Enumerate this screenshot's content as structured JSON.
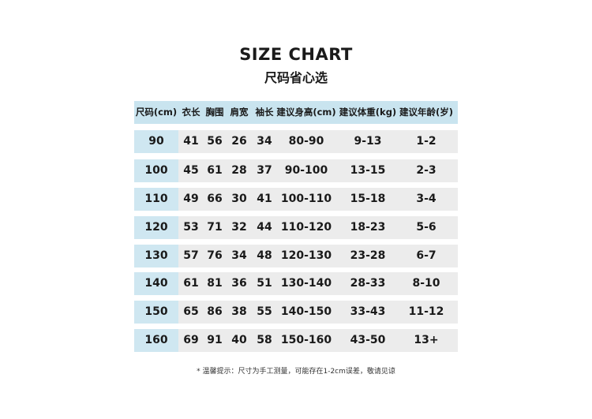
{
  "title": "SIZE CHART",
  "subtitle": "尺码省心选",
  "table": {
    "headers": [
      "尺码(cm)",
      "衣长",
      "胸围",
      "肩宽",
      "袖长",
      "建议身高(cm)",
      "建议体重(kg)",
      "建议年龄(岁)"
    ],
    "rows": [
      [
        "90",
        "41",
        "56",
        "26",
        "34",
        "80-90",
        "9-13",
        "1-2"
      ],
      [
        "100",
        "45",
        "61",
        "28",
        "37",
        "90-100",
        "13-15",
        "2-3"
      ],
      [
        "110",
        "49",
        "66",
        "30",
        "41",
        "100-110",
        "15-18",
        "3-4"
      ],
      [
        "120",
        "53",
        "71",
        "32",
        "44",
        "110-120",
        "18-23",
        "5-6"
      ],
      [
        "130",
        "57",
        "76",
        "34",
        "48",
        "120-130",
        "23-28",
        "6-7"
      ],
      [
        "140",
        "61",
        "81",
        "36",
        "51",
        "130-140",
        "28-33",
        "8-10"
      ],
      [
        "150",
        "65",
        "86",
        "38",
        "55",
        "140-150",
        "33-43",
        "11-12"
      ],
      [
        "160",
        "69",
        "91",
        "40",
        "58",
        "150-160",
        "43-50",
        "13+"
      ]
    ]
  },
  "note": "* 温馨提示：尺寸为手工测量，可能存在1-2cm误差，敬请见谅",
  "colors": {
    "header_bg": "#c9e4ef",
    "size_col_bg": "#cfe7f1",
    "row_bg": "#ececec"
  }
}
